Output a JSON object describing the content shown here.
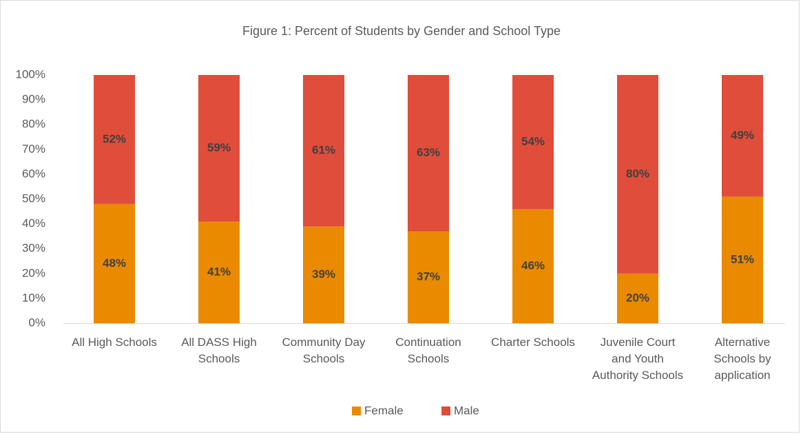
{
  "chart_data": {
    "type": "stacked_bar",
    "title": "Figure 1: Percent of Students by Gender and School Type",
    "categories": [
      "All High Schools",
      "All DASS High Schools",
      "Community Day Schools",
      "Continuation Schools",
      "Charter Schools",
      "Juvenile Court and Youth Authority Schools",
      "Alternative Schools by application"
    ],
    "series": [
      {
        "name": "Female",
        "color": "#ea8a00",
        "values": [
          48,
          41,
          39,
          37,
          46,
          20,
          51
        ],
        "value_labels": [
          "48%",
          "41%",
          "39%",
          "37%",
          "46%",
          "20%",
          "51%"
        ]
      },
      {
        "name": "Male",
        "color": "#e04d3a",
        "values": [
          52,
          59,
          61,
          63,
          54,
          80,
          49
        ],
        "value_labels": [
          "52%",
          "59%",
          "61%",
          "63%",
          "54%",
          "80%",
          "49%"
        ]
      }
    ],
    "ylim": [
      0,
      100
    ],
    "yticks": [
      {
        "value": 0,
        "label": "0%"
      },
      {
        "value": 10,
        "label": "10%"
      },
      {
        "value": 20,
        "label": "20%"
      },
      {
        "value": 30,
        "label": "30%"
      },
      {
        "value": 40,
        "label": "40%"
      },
      {
        "value": 50,
        "label": "50%"
      },
      {
        "value": 60,
        "label": "60%"
      },
      {
        "value": 70,
        "label": "70%"
      },
      {
        "value": 80,
        "label": "80%"
      },
      {
        "value": 90,
        "label": "90%"
      },
      {
        "value": 100,
        "label": "100%"
      }
    ],
    "grid": false,
    "legend": "bottom"
  }
}
